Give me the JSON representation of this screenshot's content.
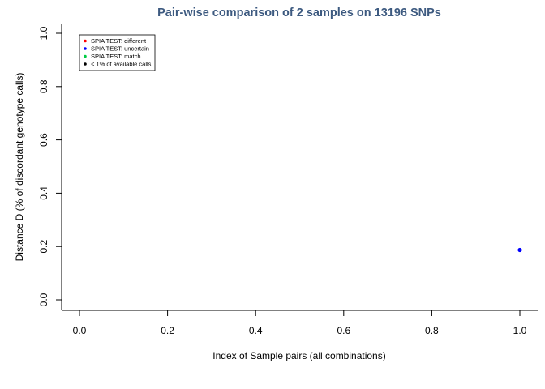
{
  "chart_data": {
    "type": "scatter",
    "title": "Pair-wise comparison of 2 samples on 13196 SNPs",
    "xlabel": "Index of Sample pairs (all combinations)",
    "ylabel": "Distance D (% of discordant genotype calls)",
    "xlim": [
      0,
      1
    ],
    "ylim": [
      0,
      1
    ],
    "xticks": [
      "0.0",
      "0.2",
      "0.4",
      "0.6",
      "0.8",
      "1.0"
    ],
    "yticks": [
      "0.0",
      "0.2",
      "0.4",
      "0.6",
      "0.8",
      "1.0"
    ],
    "grid": false,
    "legend_position": "top-left",
    "legend": [
      {
        "label": "SPIA TEST: different",
        "color": "#ff0000"
      },
      {
        "label": "SPIA TEST: uncertain",
        "color": "#0000ff"
      },
      {
        "label": "SPIA TEST: match",
        "color": "#00cc44"
      },
      {
        "label": "< 1% of available calls",
        "color": "#000000"
      }
    ],
    "points": [
      {
        "x": 1.0,
        "y": 0.187,
        "status": "SPIA TEST: uncertain",
        "color": "#0000ff"
      }
    ]
  }
}
